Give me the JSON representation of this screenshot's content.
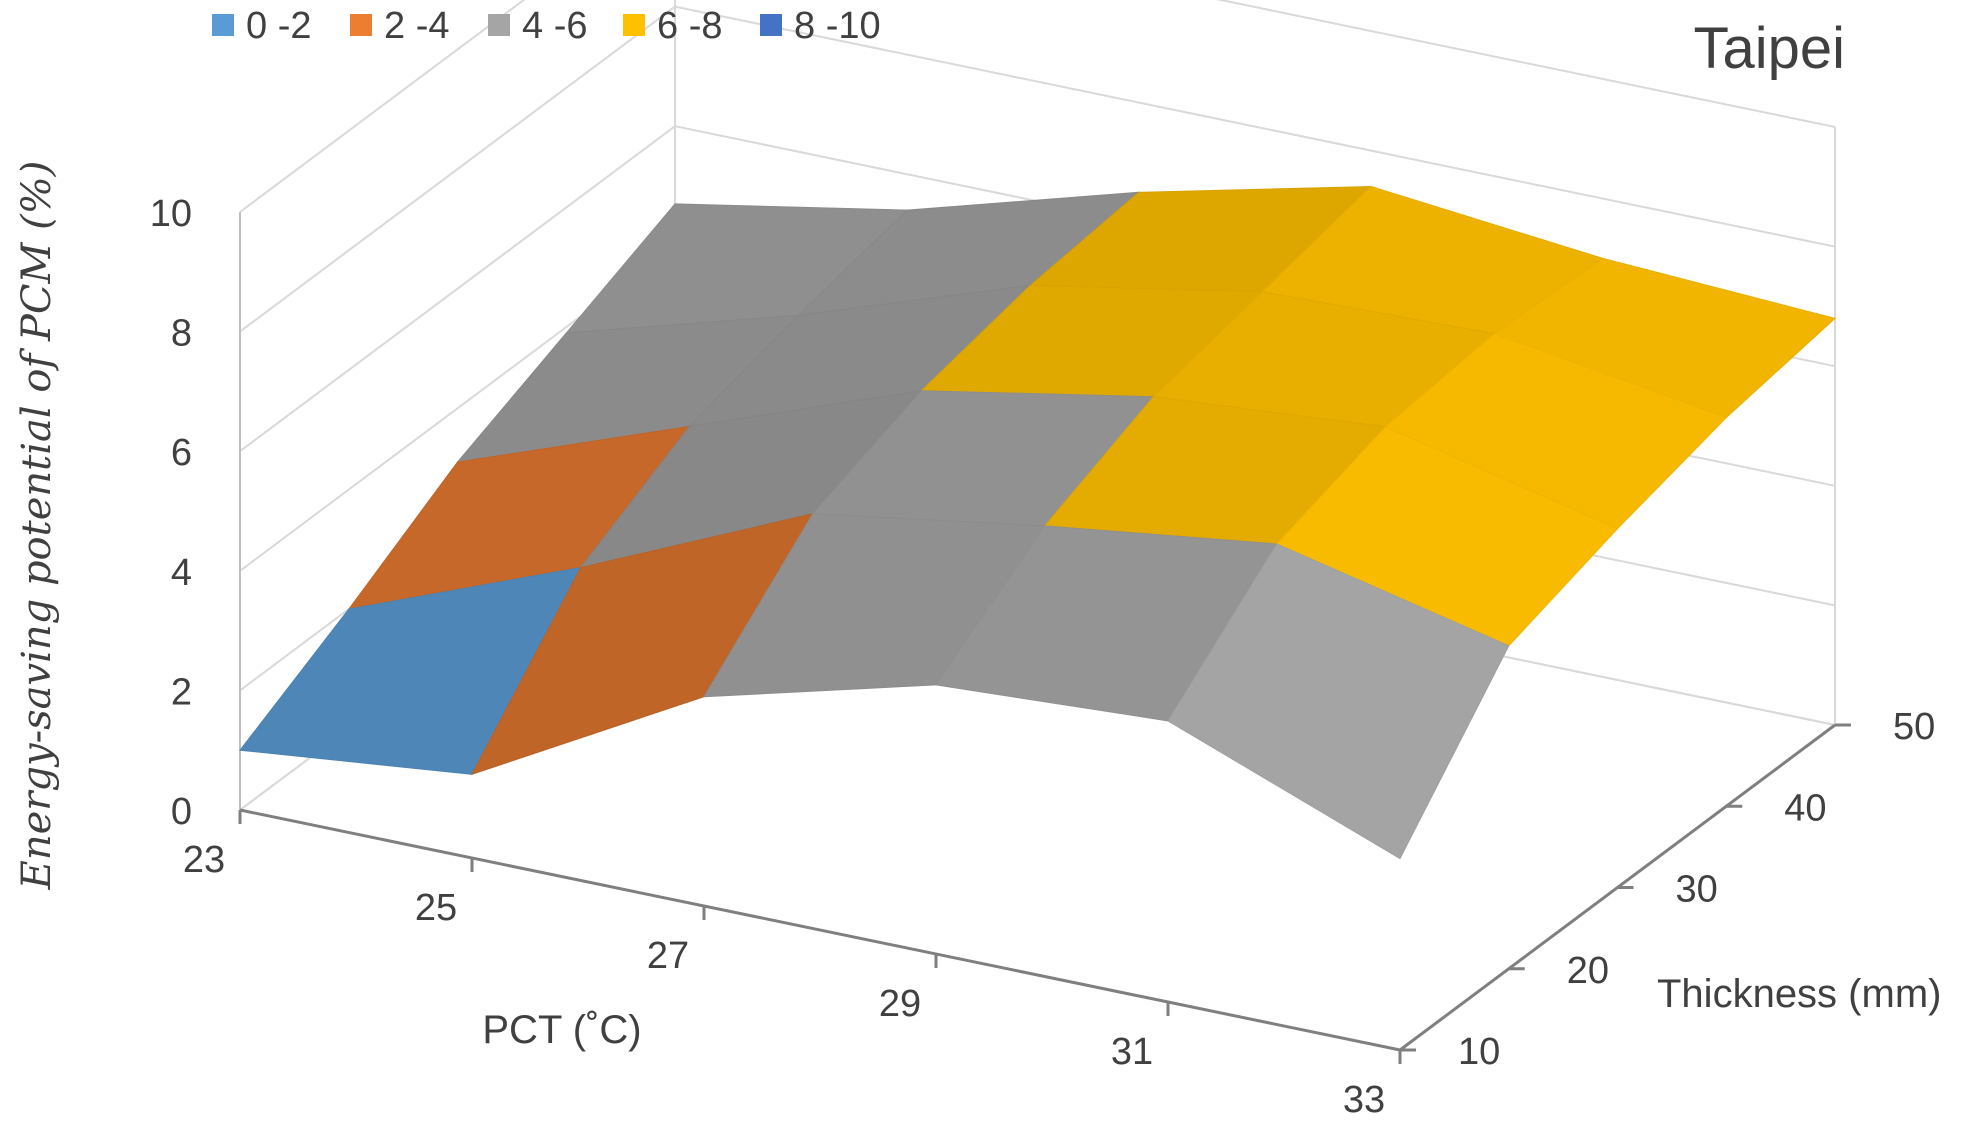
{
  "chart_data": {
    "type": "surface",
    "title": "Taipei",
    "xlabel": "PCT (˚C)",
    "ylabel": "Energy-saving potential of PCM (%)",
    "zlabel": "Thickness (mm)",
    "x": [
      23,
      25,
      27,
      29,
      31,
      33
    ],
    "x_ticks": [
      "23",
      "25",
      "27",
      "29",
      "31",
      "33"
    ],
    "depth": [
      10,
      20,
      30,
      40,
      50
    ],
    "depth_ticks": [
      "10",
      "20",
      "30",
      "40",
      "50"
    ],
    "ylim": [
      0,
      10
    ],
    "y_ticks": [
      "0",
      "2",
      "4",
      "6",
      "8",
      "10"
    ],
    "values": [
      [
        1.0,
        2.0,
        3.1,
        3.9,
        4.7
      ],
      [
        1.4,
        3.5,
        4.5,
        5.0,
        5.4
      ],
      [
        3.5,
        5.2,
        5.9,
        6.3,
        6.5
      ],
      [
        4.5,
        5.8,
        6.6,
        7.0,
        7.4
      ],
      [
        4.7,
        6.3,
        6.9,
        7.1,
        7.0
      ],
      [
        3.2,
        5.4,
        6.0,
        6.5,
        6.8
      ]
    ],
    "legend": [
      {
        "label": "0 -2",
        "color": "#5B9BD5"
      },
      {
        "label": "2 -4",
        "color": "#ED7D31"
      },
      {
        "label": "4 -6",
        "color": "#A5A5A5"
      },
      {
        "label": "6 -8",
        "color": "#FFC000"
      },
      {
        "label": "8 -10",
        "color": "#4472C4"
      }
    ],
    "legend_position": "top-left"
  }
}
